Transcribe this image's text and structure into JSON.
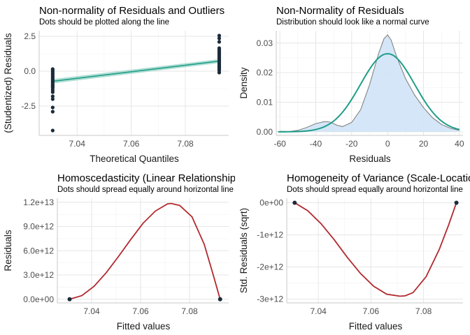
{
  "colors": {
    "point": "#1c2b3a",
    "line_green": "#1f9e89",
    "band_green": "#9fd7c9",
    "curve_red": "#b2292e",
    "density_fill": "#cfe3f6",
    "density_line": "#7a7a7a",
    "grid_major": "#e6e6e6",
    "grid_minor": "#f2f2f2",
    "axis_line": "#c8c8c8"
  },
  "chart_data": [
    {
      "id": "p1",
      "type": "scatter",
      "title": "Non-normality of Residuals and Outliers",
      "subtitle": "Dots should be plotted along the line",
      "xlabel": "Theoretical Quantiles",
      "ylabel": "(Studentized) Residuals",
      "xlim": [
        7.026,
        7.096
      ],
      "ylim": [
        -4.6,
        2.9
      ],
      "xticks": [
        7.04,
        7.06,
        7.08
      ],
      "xtick_labels": [
        "7.04",
        "7.06",
        "7.08"
      ],
      "yticks": [
        -2.5,
        0.0,
        2.5
      ],
      "ytick_labels": [
        "-2.5",
        "0.0",
        "2.5"
      ],
      "line": {
        "x": [
          7.031,
          7.0925
        ],
        "y": [
          -0.72,
          0.72
        ]
      },
      "band": {
        "x": [
          7.031,
          7.0925
        ],
        "lo": [
          -0.88,
          0.58
        ],
        "hi": [
          -0.56,
          0.86
        ]
      },
      "points": {
        "x": [
          7.031,
          7.031,
          7.031,
          7.031,
          7.031,
          7.031,
          7.031,
          7.031,
          7.031,
          7.031,
          7.031,
          7.031,
          7.031,
          7.031,
          7.031,
          7.031,
          7.031,
          7.031,
          7.031,
          7.031,
          7.031,
          7.031,
          7.0925,
          7.0925,
          7.0925,
          7.0925,
          7.0925,
          7.0925,
          7.0925,
          7.0925,
          7.0925,
          7.0925,
          7.0925,
          7.0925,
          7.0925,
          7.0925,
          7.0925,
          7.0925,
          7.0925,
          7.0925,
          7.0925,
          7.0925,
          7.0925,
          7.0925
        ],
        "y": [
          -4.25,
          -2.9,
          -2.6,
          -2.0,
          -1.8,
          -1.5,
          -1.35,
          -1.2,
          -1.05,
          -0.95,
          -0.85,
          -0.75,
          -0.65,
          -0.55,
          -0.45,
          -0.35,
          -0.25,
          -0.15,
          -0.05,
          0.05,
          0.15,
          -1.1,
          -0.1,
          0.05,
          0.15,
          0.25,
          0.35,
          0.45,
          0.55,
          0.65,
          0.75,
          0.85,
          0.95,
          1.05,
          1.15,
          1.25,
          1.35,
          1.45,
          1.55,
          1.65,
          2.1,
          2.35,
          2.55,
          0.3
        ]
      }
    },
    {
      "id": "p2",
      "type": "area",
      "title": "Non-Normality of Residuals",
      "subtitle": "Distribution should look like a normal curve",
      "xlabel": "Residuals",
      "ylabel": "Density",
      "xlim": [
        -62,
        42
      ],
      "ylim": [
        -0.0012,
        0.0342
      ],
      "xticks": [
        -60,
        -40,
        -20,
        0,
        20,
        40
      ],
      "xtick_labels": [
        "-60",
        "-40",
        "-20",
        "0",
        "20",
        "40"
      ],
      "yticks": [
        0.0,
        0.01,
        0.02,
        0.03
      ],
      "ytick_labels": [
        "0.00",
        "0.01",
        "0.02",
        "0.03"
      ],
      "density": {
        "x": [
          -60,
          -55,
          -50,
          -45,
          -40,
          -35,
          -32,
          -28,
          -25,
          -20,
          -15,
          -10,
          -5,
          -2,
          0,
          2,
          5,
          10,
          15,
          20,
          25,
          30,
          35,
          40
        ],
        "y": [
          0.0002,
          0.0001,
          0.0005,
          0.0015,
          0.0028,
          0.0035,
          0.0033,
          0.0022,
          0.0018,
          0.0032,
          0.0075,
          0.016,
          0.0265,
          0.0315,
          0.0328,
          0.031,
          0.0255,
          0.018,
          0.0125,
          0.0082,
          0.0048,
          0.0025,
          0.0012,
          0.0005
        ]
      },
      "normal_curve": {
        "mean": 0,
        "sd": 15.1
      }
    },
    {
      "id": "p3",
      "type": "line",
      "title": "Homoscedasticity (Linear Relationship)",
      "subtitle": "Dots should spread equally around horizontal line",
      "xlabel": "Fitted values",
      "ylabel": "Residuals",
      "xlim": [
        7.026,
        7.096
      ],
      "ylim": [
        -450000000000.0,
        12500000000000.0
      ],
      "xticks": [
        7.04,
        7.06,
        7.08
      ],
      "xtick_labels": [
        "7.04",
        "7.06",
        "7.08"
      ],
      "yticks": [
        0,
        3000000000000.0,
        6000000000000.0,
        9000000000000.0,
        12000000000000.0
      ],
      "ytick_labels": [
        "0.0e+00",
        "3.0e+12",
        "6.0e+12",
        "9.0e+12",
        "1.2e+13"
      ],
      "curve": {
        "x": [
          7.031,
          7.036,
          7.041,
          7.046,
          7.051,
          7.056,
          7.061,
          7.066,
          7.071,
          7.0725,
          7.076,
          7.081,
          7.086,
          7.0895,
          7.0925
        ],
        "y": [
          0,
          450000000000.0,
          1600000000000.0,
          3300000000000.0,
          5300000000000.0,
          7400000000000.0,
          9400000000000.0,
          10900000000000.0,
          11800000000000.0,
          11850000000000.0,
          11600000000000.0,
          10200000000000.0,
          6800000000000.0,
          3200000000000.0,
          0
        ]
      },
      "points": {
        "x": [
          7.031,
          7.0925
        ],
        "y": [
          0,
          0
        ]
      }
    },
    {
      "id": "p4",
      "type": "line",
      "title": "Homogeneity of Variance (Scale-Location)",
      "subtitle": "Dots should spread equally around horizontal line",
      "xlabel": "Fitted values",
      "ylabel": "Std. Residuals (sqrt)",
      "xlim": [
        7.028,
        7.095
      ],
      "ylim": [
        -3120000000000.0,
        140000000000.0
      ],
      "xticks": [
        7.04,
        7.06,
        7.08
      ],
      "xtick_labels": [
        "7.04",
        "7.06",
        "7.08"
      ],
      "yticks": [
        0,
        -1000000000000.0,
        -2000000000000.0,
        -3000000000000.0
      ],
      "ytick_labels": [
        "0e+00",
        "-1e+12",
        "-2e+12",
        "-3e+12"
      ],
      "curve": {
        "x": [
          7.031,
          7.036,
          7.041,
          7.046,
          7.051,
          7.056,
          7.061,
          7.066,
          7.071,
          7.073,
          7.076,
          7.081,
          7.086,
          7.0895,
          7.0925
        ],
        "y": [
          0,
          -250000000000.0,
          -650000000000.0,
          -1150000000000.0,
          -1700000000000.0,
          -2200000000000.0,
          -2600000000000.0,
          -2850000000000.0,
          -2910000000000.0,
          -2900000000000.0,
          -2800000000000.0,
          -2300000000000.0,
          -1450000000000.0,
          -700000000000.0,
          0
        ]
      },
      "points": {
        "x": [
          7.031,
          7.0925
        ],
        "y": [
          0,
          0
        ]
      }
    }
  ]
}
